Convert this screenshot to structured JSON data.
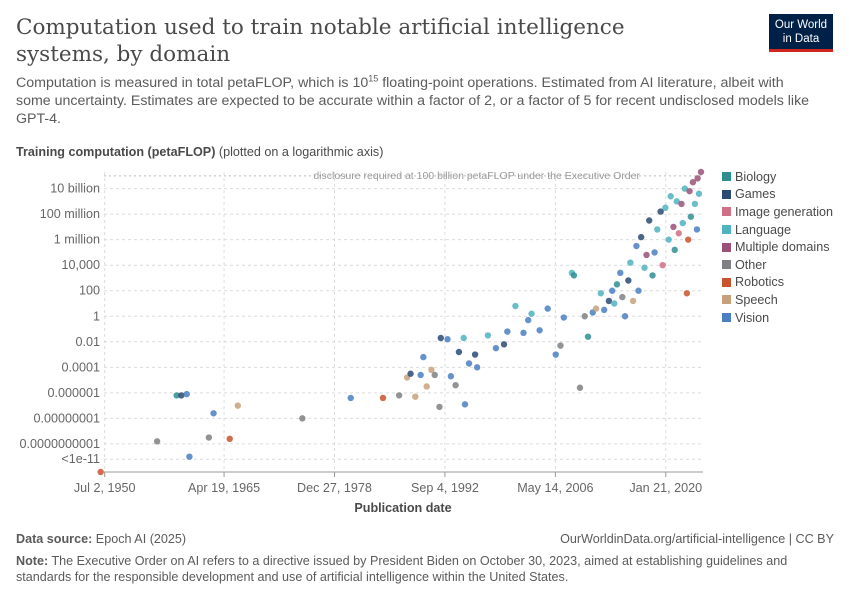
{
  "header": {
    "title": "Computation used to train notable artificial intelligence systems, by domain",
    "subtitle_pre": "Computation is measured in total petaFLOP, which is 10",
    "subtitle_sup": "15",
    "subtitle_post": " floating-point operations. Estimated from AI literature, albeit with some uncertainty. Estimates are expected to be accurate within a factor of 2, or a factor of 5 for recent undisclosed models like GPT-4.",
    "logo_line1": "Our World",
    "logo_line2": "in Data"
  },
  "footer": {
    "source_label": "Data source:",
    "source_value": " Epoch AI (2025)",
    "url": "OurWorldinData.org/artificial-intelligence | CC BY",
    "note_label": "Note:",
    "note_value": " The Executive Order on AI refers to a directive issued by President Biden on October 30, 2023, aimed at establishing guidelines and standards for the responsible development and use of artificial intelligence within the United States."
  },
  "chart_data": {
    "type": "scatter",
    "ylabel": "Training computation (petaFLOP)",
    "ylabel_note": " (plotted on a logarithmic axis)",
    "xlabel": "Publication date",
    "y_scale": "log10",
    "ylim_log10": [
      -12.2,
      11.3
    ],
    "xlim": [
      "1950-06-01",
      "2024-09-01"
    ],
    "y_ticks": [
      {
        "log10": 10,
        "label": "10 billion"
      },
      {
        "log10": 8,
        "label": "100 million"
      },
      {
        "log10": 6,
        "label": "1 million"
      },
      {
        "log10": 4,
        "label": "10,000"
      },
      {
        "log10": 2,
        "label": "100"
      },
      {
        "log10": 0,
        "label": "1"
      },
      {
        "log10": -2,
        "label": "0.01"
      },
      {
        "log10": -4,
        "label": "0.0001"
      },
      {
        "log10": -6,
        "label": "0.000001"
      },
      {
        "log10": -8,
        "label": "0.00000001"
      },
      {
        "log10": -10,
        "label": "0.0000000001"
      },
      {
        "log10": -11.2,
        "label": "<1e-11"
      }
    ],
    "x_ticks": [
      {
        "date": "1950-07-02",
        "label": "Jul 2, 1950"
      },
      {
        "date": "1965-04-19",
        "label": "Apr 19, 1965"
      },
      {
        "date": "1978-12-27",
        "label": "Dec 27, 1978"
      },
      {
        "date": "1992-09-04",
        "label": "Sep 4, 1992"
      },
      {
        "date": "2006-05-14",
        "label": "May 14, 2006"
      },
      {
        "date": "2020-01-21",
        "label": "Jan 21, 2020"
      }
    ],
    "annotation": {
      "text": "disclosure required at 100 billion petaFLOP under the Executive Order",
      "log10": 11
    },
    "legend": [
      {
        "name": "Biology",
        "color": "#2f8f8f"
      },
      {
        "name": "Games",
        "color": "#2b4a73"
      },
      {
        "name": "Image generation",
        "color": "#d06f85"
      },
      {
        "name": "Language",
        "color": "#4fb3c0"
      },
      {
        "name": "Multiple domains",
        "color": "#9a5077"
      },
      {
        "name": "Other",
        "color": "#7f8083"
      },
      {
        "name": "Robotics",
        "color": "#c8532d"
      },
      {
        "name": "Speech",
        "color": "#c6a27c"
      },
      {
        "name": "Vision",
        "color": "#4a7fc1"
      }
    ],
    "points": [
      {
        "date": "1950-01-01",
        "log10": -12.2,
        "domain": "Robotics"
      },
      {
        "date": "1957-01-01",
        "log10": -9.8,
        "domain": "Other"
      },
      {
        "date": "1959-06-01",
        "log10": -6.2,
        "domain": "Biology"
      },
      {
        "date": "1960-01-01",
        "log10": -6.2,
        "domain": "Games"
      },
      {
        "date": "1960-09-01",
        "log10": -6.1,
        "domain": "Vision"
      },
      {
        "date": "1961-01-01",
        "log10": -11.0,
        "domain": "Vision"
      },
      {
        "date": "1963-06-01",
        "log10": -9.5,
        "domain": "Other"
      },
      {
        "date": "1964-01-01",
        "log10": -7.6,
        "domain": "Vision"
      },
      {
        "date": "1966-01-01",
        "log10": -9.6,
        "domain": "Robotics"
      },
      {
        "date": "1967-01-01",
        "log10": -7.0,
        "domain": "Speech"
      },
      {
        "date": "1975-01-01",
        "log10": -8.0,
        "domain": "Other"
      },
      {
        "date": "1981-01-01",
        "log10": -6.4,
        "domain": "Vision"
      },
      {
        "date": "1985-01-01",
        "log10": -6.4,
        "domain": "Robotics"
      },
      {
        "date": "1987-01-01",
        "log10": -6.2,
        "domain": "Other"
      },
      {
        "date": "1988-01-01",
        "log10": -4.8,
        "domain": "Speech"
      },
      {
        "date": "1988-06-01",
        "log10": -4.5,
        "domain": "Games"
      },
      {
        "date": "1989-01-01",
        "log10": -6.3,
        "domain": "Speech"
      },
      {
        "date": "1989-09-01",
        "log10": -4.6,
        "domain": "Vision"
      },
      {
        "date": "1990-01-01",
        "log10": -3.2,
        "domain": "Vision"
      },
      {
        "date": "1990-06-01",
        "log10": -5.5,
        "domain": "Speech"
      },
      {
        "date": "1991-01-01",
        "log10": -4.2,
        "domain": "Speech"
      },
      {
        "date": "1991-06-01",
        "log10": -4.6,
        "domain": "Other"
      },
      {
        "date": "1992-01-01",
        "log10": -7.1,
        "domain": "Other"
      },
      {
        "date": "1992-03-01",
        "log10": -1.7,
        "domain": "Games"
      },
      {
        "date": "1993-01-01",
        "log10": -1.8,
        "domain": "Vision"
      },
      {
        "date": "1993-06-01",
        "log10": -4.7,
        "domain": "Vision"
      },
      {
        "date": "1994-01-01",
        "log10": -5.4,
        "domain": "Other"
      },
      {
        "date": "1994-06-01",
        "log10": -2.8,
        "domain": "Games"
      },
      {
        "date": "1995-01-01",
        "log10": -1.7,
        "domain": "Language"
      },
      {
        "date": "1995-03-01",
        "log10": -6.9,
        "domain": "Vision"
      },
      {
        "date": "1995-09-01",
        "log10": -3.7,
        "domain": "Vision"
      },
      {
        "date": "1996-06-01",
        "log10": -3.0,
        "domain": "Games"
      },
      {
        "date": "1996-09-01",
        "log10": -4.0,
        "domain": "Vision"
      },
      {
        "date": "1998-01-01",
        "log10": -1.5,
        "domain": "Language"
      },
      {
        "date": "1999-01-01",
        "log10": -2.5,
        "domain": "Vision"
      },
      {
        "date": "2000-01-01",
        "log10": -2.2,
        "domain": "Games"
      },
      {
        "date": "2000-06-01",
        "log10": -1.2,
        "domain": "Vision"
      },
      {
        "date": "2001-06-01",
        "log10": 0.8,
        "domain": "Language"
      },
      {
        "date": "2002-06-01",
        "log10": -1.3,
        "domain": "Vision"
      },
      {
        "date": "2003-01-01",
        "log10": -0.3,
        "domain": "Vision"
      },
      {
        "date": "2003-06-01",
        "log10": 0.2,
        "domain": "Language"
      },
      {
        "date": "2004-06-01",
        "log10": -1.1,
        "domain": "Vision"
      },
      {
        "date": "2005-06-01",
        "log10": 0.6,
        "domain": "Vision"
      },
      {
        "date": "2006-06-01",
        "log10": -3.0,
        "domain": "Vision"
      },
      {
        "date": "2007-01-01",
        "log10": -2.3,
        "domain": "Other"
      },
      {
        "date": "2007-06-01",
        "log10": -0.1,
        "domain": "Vision"
      },
      {
        "date": "2008-06-01",
        "log10": 3.4,
        "domain": "Language"
      },
      {
        "date": "2008-09-01",
        "log10": 3.2,
        "domain": "Biology"
      },
      {
        "date": "2009-06-01",
        "log10": -5.6,
        "domain": "Other"
      },
      {
        "date": "2010-01-01",
        "log10": 0.0,
        "domain": "Other"
      },
      {
        "date": "2010-06-01",
        "log10": -1.6,
        "domain": "Biology"
      },
      {
        "date": "2011-01-01",
        "log10": 0.3,
        "domain": "Vision"
      },
      {
        "date": "2011-06-01",
        "log10": 0.6,
        "domain": "Speech"
      },
      {
        "date": "2012-01-01",
        "log10": 1.8,
        "domain": "Language"
      },
      {
        "date": "2012-06-01",
        "log10": 0.5,
        "domain": "Vision"
      },
      {
        "date": "2013-01-01",
        "log10": 1.2,
        "domain": "Games"
      },
      {
        "date": "2013-06-01",
        "log10": 2.0,
        "domain": "Vision"
      },
      {
        "date": "2013-09-01",
        "log10": 1.0,
        "domain": "Language"
      },
      {
        "date": "2014-01-01",
        "log10": 2.5,
        "domain": "Biology"
      },
      {
        "date": "2014-06-01",
        "log10": 3.4,
        "domain": "Vision"
      },
      {
        "date": "2014-09-01",
        "log10": 1.5,
        "domain": "Other"
      },
      {
        "date": "2015-01-01",
        "log10": 0.0,
        "domain": "Vision"
      },
      {
        "date": "2015-06-01",
        "log10": 2.8,
        "domain": "Games"
      },
      {
        "date": "2015-09-01",
        "log10": 4.2,
        "domain": "Language"
      },
      {
        "date": "2016-01-01",
        "log10": 1.2,
        "domain": "Speech"
      },
      {
        "date": "2016-06-01",
        "log10": 5.5,
        "domain": "Vision"
      },
      {
        "date": "2016-09-01",
        "log10": 2.0,
        "domain": "Vision"
      },
      {
        "date": "2017-01-01",
        "log10": 6.2,
        "domain": "Games"
      },
      {
        "date": "2017-06-01",
        "log10": 3.8,
        "domain": "Language"
      },
      {
        "date": "2017-09-01",
        "log10": 4.8,
        "domain": "Multiple domains"
      },
      {
        "date": "2018-01-01",
        "log10": 7.5,
        "domain": "Games"
      },
      {
        "date": "2018-06-01",
        "log10": 3.2,
        "domain": "Biology"
      },
      {
        "date": "2018-09-01",
        "log10": 5.0,
        "domain": "Vision"
      },
      {
        "date": "2019-01-01",
        "log10": 6.8,
        "domain": "Language"
      },
      {
        "date": "2019-06-01",
        "log10": 8.2,
        "domain": "Games"
      },
      {
        "date": "2019-09-01",
        "log10": 4.0,
        "domain": "Image generation"
      },
      {
        "date": "2020-01-01",
        "log10": 8.5,
        "domain": "Language"
      },
      {
        "date": "2020-06-01",
        "log10": 6.0,
        "domain": "Language"
      },
      {
        "date": "2020-09-01",
        "log10": 9.4,
        "domain": "Language"
      },
      {
        "date": "2021-01-01",
        "log10": 7.0,
        "domain": "Multiple domains"
      },
      {
        "date": "2021-03-01",
        "log10": 5.2,
        "domain": "Biology"
      },
      {
        "date": "2021-06-01",
        "log10": 9.0,
        "domain": "Language"
      },
      {
        "date": "2021-09-01",
        "log10": 6.5,
        "domain": "Image generation"
      },
      {
        "date": "2022-01-01",
        "log10": 8.8,
        "domain": "Multiple domains"
      },
      {
        "date": "2022-03-01",
        "log10": 7.3,
        "domain": "Language"
      },
      {
        "date": "2022-06-01",
        "log10": 10.0,
        "domain": "Language"
      },
      {
        "date": "2022-09-01",
        "log10": 1.8,
        "domain": "Robotics"
      },
      {
        "date": "2022-11-01",
        "log10": 6.0,
        "domain": "Robotics"
      },
      {
        "date": "2023-01-01",
        "log10": 9.8,
        "domain": "Multiple domains"
      },
      {
        "date": "2023-03-01",
        "log10": 7.8,
        "domain": "Biology"
      },
      {
        "date": "2023-06-01",
        "log10": 10.5,
        "domain": "Multiple domains"
      },
      {
        "date": "2023-09-01",
        "log10": 8.8,
        "domain": "Language"
      },
      {
        "date": "2023-12-01",
        "log10": 6.8,
        "domain": "Vision"
      },
      {
        "date": "2024-01-01",
        "log10": 10.8,
        "domain": "Multiple domains"
      },
      {
        "date": "2024-03-01",
        "log10": 9.6,
        "domain": "Language"
      },
      {
        "date": "2024-06-01",
        "log10": 11.3,
        "domain": "Multiple domains"
      }
    ]
  }
}
